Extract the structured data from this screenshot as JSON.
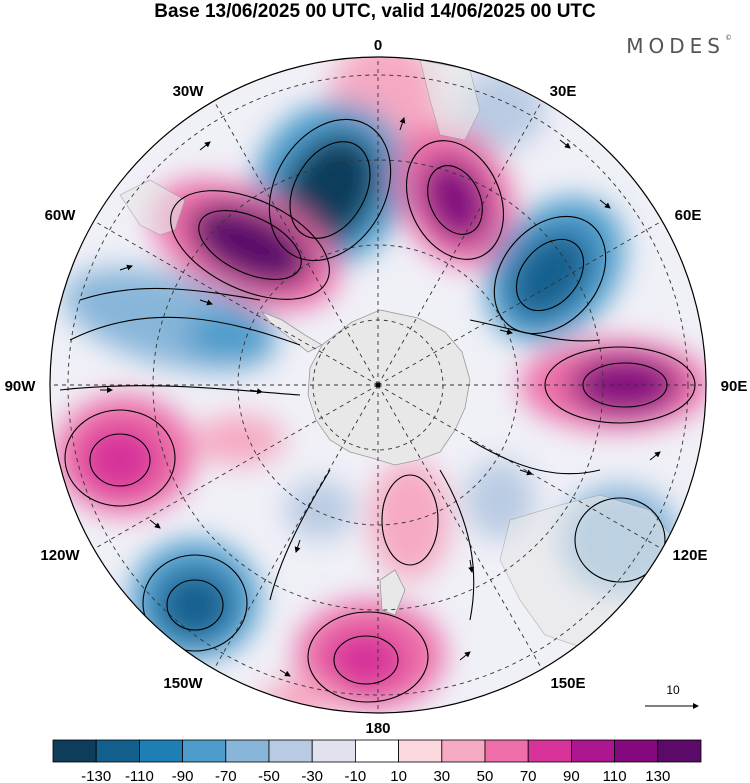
{
  "title": "Base 13/06/2025 00 UTC, valid 14/06/2025 00 UTC",
  "logo": "MODES",
  "logo_mark": "©",
  "longitude_labels": {
    "lon_0": "0",
    "lon_30e": "30E",
    "lon_60e": "60E",
    "lon_90e": "90E",
    "lon_120e": "120E",
    "lon_150e": "150E",
    "lon_180": "180",
    "lon_150w": "150W",
    "lon_120w": "120W",
    "lon_90w": "90W",
    "lon_60w": "60W",
    "lon_30w": "30W"
  },
  "reference_vector": {
    "label": "10"
  },
  "colorbar": {
    "labels": [
      "-130",
      "-110",
      "-90",
      "-70",
      "-50",
      "-30",
      "-10",
      "10",
      "30",
      "50",
      "70",
      "90",
      "110",
      "130"
    ],
    "colors": [
      "#0e3d5c",
      "#13608f",
      "#1f7fb5",
      "#4d9ccc",
      "#88b6d9",
      "#b9cbe3",
      "#e2e2ef",
      "#ffffff",
      "#fbd9de",
      "#f6a9c2",
      "#ed6ea8",
      "#d7339a",
      "#ac1690",
      "#85087f",
      "#5c0a6a"
    ]
  },
  "colors": {
    "land": "#e8e8e8",
    "coast": "#9a9a9a",
    "positive_strong": "#85087f",
    "negative_strong": "#0e3d5c"
  }
}
